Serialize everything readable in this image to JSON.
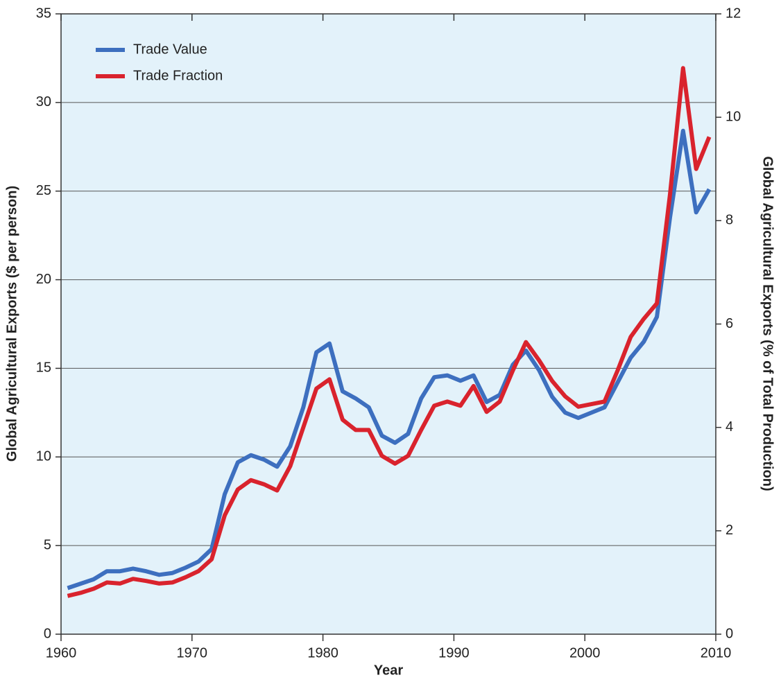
{
  "chart_data": {
    "type": "line",
    "xlabel": "Year",
    "ylabel": "Global Agricultural Exports ($ per person)",
    "y2label": "Global Agricultural Exports (% of Total Production)",
    "x": [
      1960.5,
      1961.5,
      1962.5,
      1963.5,
      1964.5,
      1965.5,
      1966.5,
      1967.5,
      1968.5,
      1969.5,
      1970.5,
      1971.5,
      1972.5,
      1973.5,
      1974.5,
      1975.5,
      1976.5,
      1977.5,
      1978.5,
      1979.5,
      1980.5,
      1981.5,
      1982.5,
      1983.5,
      1984.5,
      1985.5,
      1986.5,
      1987.5,
      1988.5,
      1989.5,
      1990.5,
      1991.5,
      1992.5,
      1993.5,
      1994.5,
      1995.5,
      1996.5,
      1997.5,
      1998.5,
      1999.5,
      2000.5,
      2001.5,
      2002.5,
      2003.5,
      2004.5,
      2005.5,
      2006.5,
      2007.5,
      2008.5,
      2009.5
    ],
    "series": [
      {
        "name": "Trade Value",
        "color": "#3d6fbf",
        "values": [
          2.6,
          2.85,
          3.1,
          3.55,
          3.55,
          3.7,
          3.55,
          3.35,
          3.45,
          3.75,
          4.1,
          4.8,
          7.9,
          9.7,
          10.1,
          9.85,
          9.45,
          10.6,
          12.8,
          15.9,
          16.4,
          13.7,
          13.3,
          12.8,
          11.2,
          10.8,
          11.3,
          13.3,
          14.5,
          14.6,
          14.3,
          14.6,
          13.1,
          13.5,
          15.2,
          16.0,
          14.9,
          13.4,
          12.5,
          12.2,
          12.5,
          12.8,
          14.2,
          15.6,
          16.5,
          17.9,
          23.5,
          28.4,
          23.8,
          25.1
        ]
      },
      {
        "name": "Trade Fraction",
        "color": "#d9232d",
        "axis": "y2",
        "values": [
          0.74,
          0.8,
          0.88,
          1.0,
          0.98,
          1.07,
          1.03,
          0.98,
          1.0,
          1.1,
          1.22,
          1.45,
          2.3,
          2.8,
          2.98,
          2.9,
          2.78,
          3.25,
          4.0,
          4.75,
          4.93,
          4.15,
          3.95,
          3.95,
          3.45,
          3.3,
          3.45,
          3.95,
          4.42,
          4.5,
          4.42,
          4.8,
          4.3,
          4.5,
          5.1,
          5.65,
          5.3,
          4.9,
          4.6,
          4.4,
          4.45,
          4.5,
          5.1,
          5.75,
          6.1,
          6.4,
          8.5,
          10.95,
          9.0,
          9.62
        ]
      }
    ],
    "xlim": [
      1960,
      2010
    ],
    "xticks": [
      1960,
      1970,
      1980,
      1990,
      2000,
      2010
    ],
    "ylim": [
      0,
      35
    ],
    "yticks": [
      0,
      5,
      10,
      15,
      20,
      25,
      30,
      35
    ],
    "y2lim": [
      0,
      12
    ],
    "y2ticks": [
      0,
      2,
      4,
      6,
      8,
      10,
      12
    ],
    "grid": true,
    "legend": "upper left",
    "background": "#e3f2fa"
  }
}
